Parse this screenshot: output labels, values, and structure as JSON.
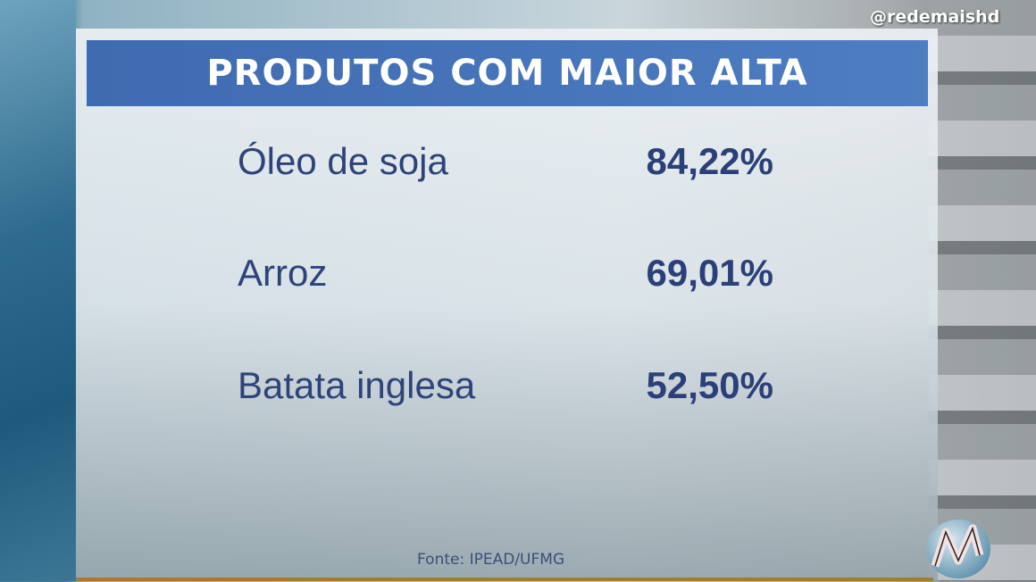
{
  "banner": {
    "title": "PRODUTOS COM MAIOR ALTA"
  },
  "items": [
    {
      "name": "Óleo de soja",
      "value": "84,22%"
    },
    {
      "name": "Arroz",
      "value": "69,01%"
    },
    {
      "name": "Batata inglesa",
      "value": "52,50%"
    }
  ],
  "source": "Fonte: IPEAD/UFMG",
  "handle": "@redemaishd",
  "logo": {
    "text": "M"
  },
  "colors": {
    "banner": "#4672b8",
    "text": "#2e4479"
  }
}
